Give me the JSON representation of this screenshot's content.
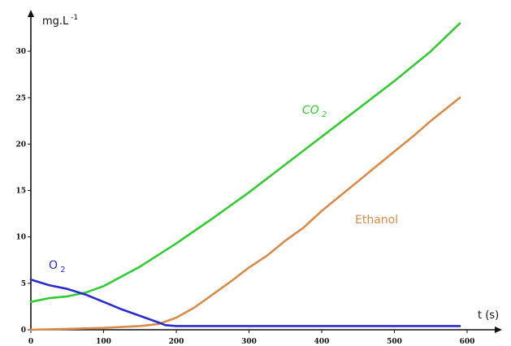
{
  "chart_data": {
    "type": "line",
    "xlabel": "t (s)",
    "ylabel_base": "mg.L",
    "ylabel_exp": "-1",
    "xlim": [
      0,
      650
    ],
    "ylim": [
      0,
      34
    ],
    "x_ticks": [
      0,
      100,
      200,
      300,
      400,
      500,
      600
    ],
    "y_ticks": [
      0,
      5,
      10,
      15,
      20,
      25,
      30
    ],
    "grid": false,
    "series": [
      {
        "name_base": "CO",
        "name_sub": "2",
        "color": "#33cc33",
        "x": [
          0,
          25,
          50,
          75,
          100,
          150,
          200,
          250,
          300,
          350,
          400,
          450,
          500,
          550,
          590
        ],
        "y": [
          3.0,
          3.4,
          3.6,
          4.0,
          4.7,
          6.8,
          9.3,
          12.0,
          14.8,
          17.8,
          20.8,
          23.8,
          26.8,
          30.0,
          33.0
        ]
      },
      {
        "name_base": "Ethanol",
        "name_sub": "",
        "color": "#d98c4a",
        "x": [
          0,
          50,
          100,
          150,
          175,
          200,
          225,
          250,
          275,
          300,
          325,
          350,
          375,
          400,
          425,
          450,
          475,
          500,
          525,
          550,
          590
        ],
        "y": [
          0.0,
          0.1,
          0.2,
          0.4,
          0.6,
          1.3,
          2.4,
          3.8,
          5.2,
          6.7,
          8.0,
          9.6,
          11.0,
          12.8,
          14.4,
          16.0,
          17.6,
          19.2,
          20.8,
          22.5,
          25.0
        ]
      },
      {
        "name_base": "O",
        "name_sub": "2",
        "color": "#2b2bcc",
        "x": [
          0,
          25,
          50,
          75,
          100,
          125,
          150,
          175,
          185,
          200,
          300,
          400,
          500,
          590
        ],
        "y": [
          5.4,
          4.8,
          4.4,
          3.8,
          3.0,
          2.2,
          1.5,
          0.8,
          0.5,
          0.4,
          0.4,
          0.4,
          0.4,
          0.4
        ]
      }
    ]
  }
}
